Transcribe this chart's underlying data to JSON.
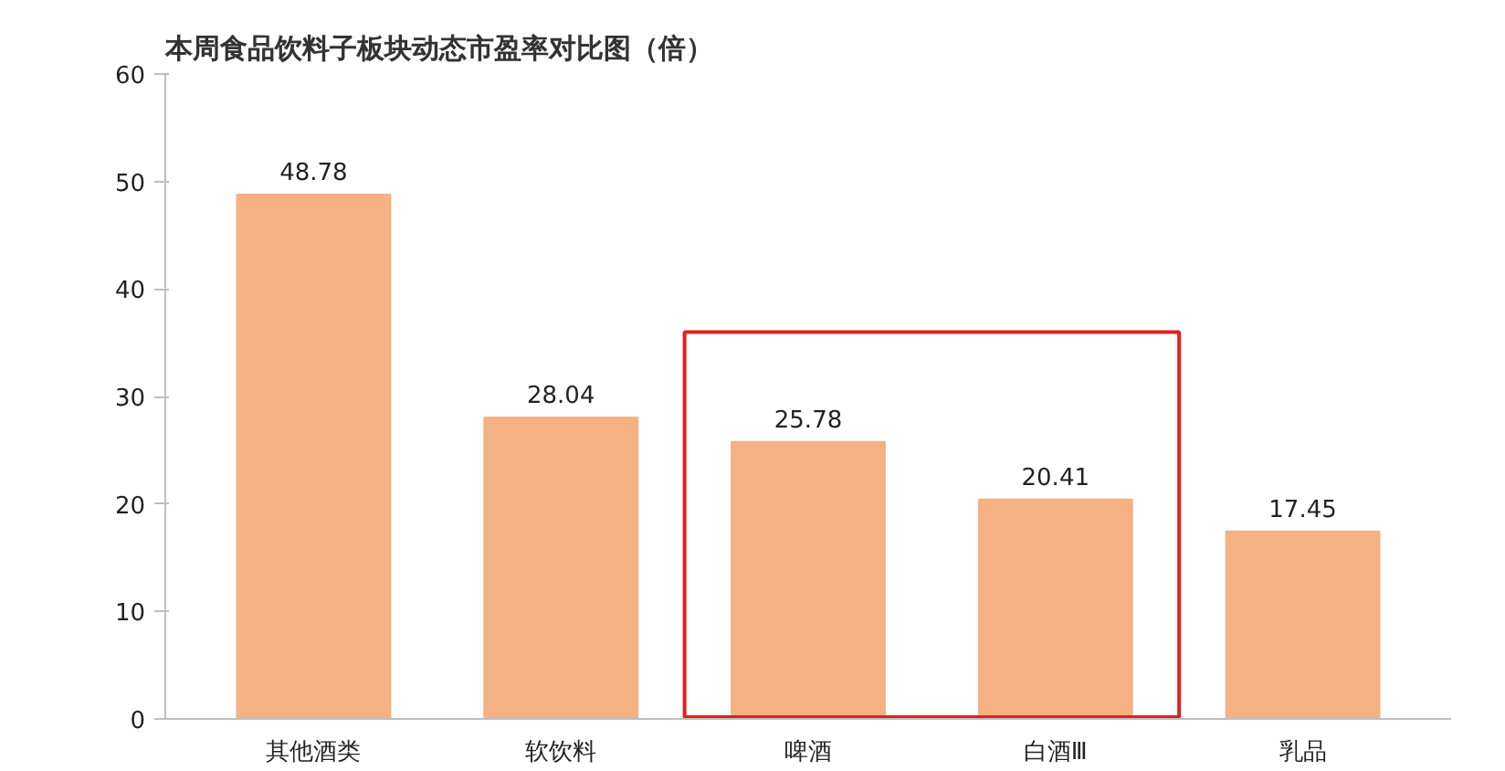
{
  "chart_data": {
    "type": "bar",
    "title": "本周食品饮料子板块动态市盈率对比图（倍）",
    "categories": [
      "其他酒类",
      "软饮料",
      "啤酒",
      "白酒Ⅲ",
      "乳品"
    ],
    "values": [
      48.78,
      28.04,
      25.78,
      20.41,
      17.45
    ],
    "color": "#f4b183",
    "ylim": [
      0,
      60
    ],
    "yticks": [
      0,
      10,
      20,
      30,
      40,
      50,
      60
    ],
    "grid": false,
    "data_labels": true
  }
}
